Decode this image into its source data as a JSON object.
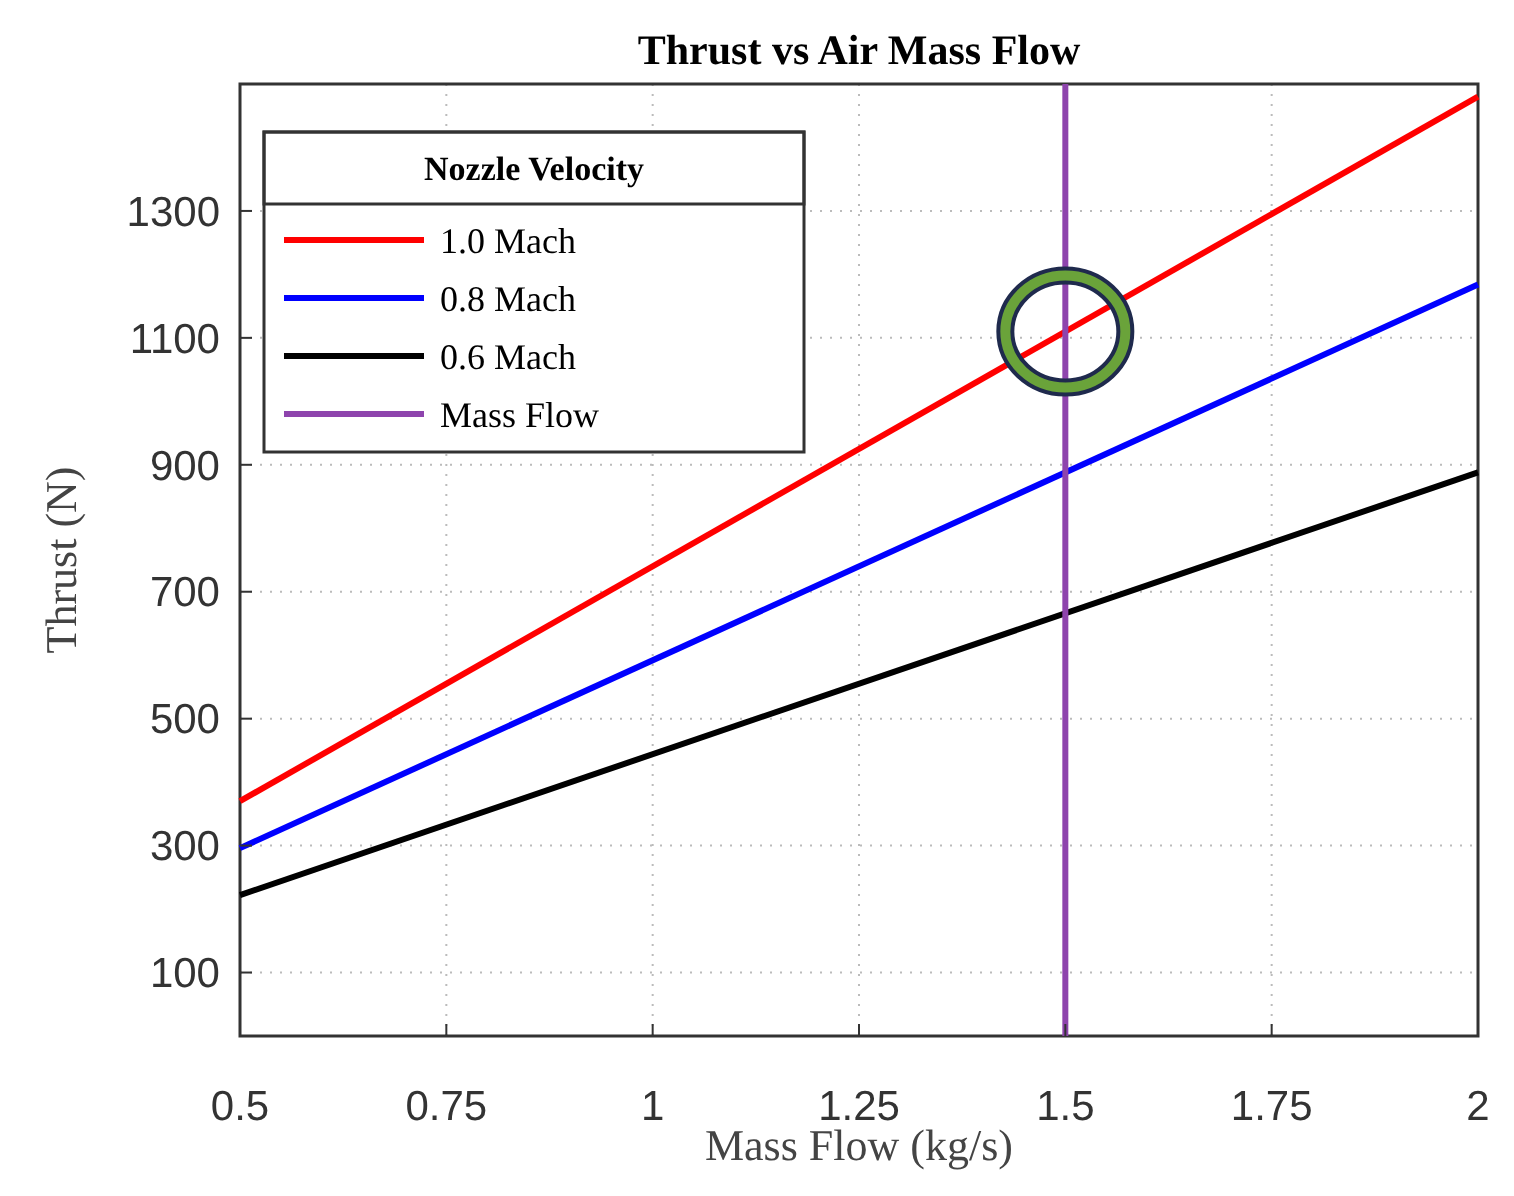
{
  "chart_data": {
    "type": "line",
    "title": "Thrust vs Air Mass Flow",
    "xlabel": "Mass Flow (kg/s)",
    "ylabel": "Thrust (N)",
    "legend_title": "Nozzle Velocity",
    "legend": "top left",
    "grid": true,
    "line_style": "solid",
    "marker": "none",
    "x": [
      0.5,
      2
    ],
    "series": [
      {
        "name": "1.0 Mach",
        "color": "#ff0000",
        "values": [
          370,
          1480
        ]
      },
      {
        "name": "0.8 Mach",
        "color": "#0000ff",
        "values": [
          296,
          1184
        ]
      },
      {
        "name": "0.6 Mach",
        "color": "#000000",
        "values": [
          222,
          888
        ]
      },
      {
        "name": "Mass Flow",
        "color": "#8e44ad",
        "x": [
          1.5,
          1.5
        ],
        "values": [
          0,
          1500
        ]
      }
    ],
    "xlim": [
      0.5,
      2
    ],
    "xticks": [
      0.5,
      0.75,
      1,
      1.25,
      1.5,
      1.75,
      2
    ],
    "ylim": [
      0,
      1500
    ],
    "yticks": [
      100,
      300,
      500,
      700,
      900,
      1100,
      1300
    ]
  }
}
